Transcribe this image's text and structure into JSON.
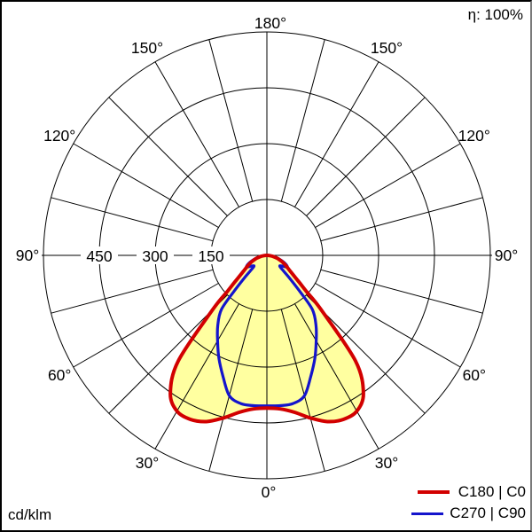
{
  "header": {
    "eta": "η: 100%"
  },
  "footer": {
    "unit": "cd/klm"
  },
  "legend": [
    {
      "label": "C180 | C0",
      "color": "#d20000"
    },
    {
      "label": "C270 | C90",
      "color": "#1414cc"
    }
  ],
  "chart_data": {
    "type": "polar-intensity",
    "title": "Luminous intensity distribution curve",
    "unit": "cd/klm",
    "eta_percent": 100,
    "gamma_zero": "bottom",
    "angle_labels_deg": [
      0,
      30,
      60,
      90,
      120,
      150,
      180
    ],
    "angle_label_suffix": "°",
    "radial_ticks": [
      150,
      300,
      450
    ],
    "radial_max": 600,
    "spoke_step_deg": 15,
    "grid_color": "#000000",
    "fill_color": "#ffffa0",
    "series": [
      {
        "name": "C180 | C0",
        "plane": "C0-C180",
        "color": "#d20000",
        "stroke_width": 4,
        "gamma_deg": [
          0,
          5,
          10,
          15,
          20,
          25,
          30,
          35,
          40,
          45,
          47.5,
          50,
          55,
          60,
          65,
          70,
          75,
          80,
          85,
          90
        ],
        "cd_per_klm": [
          410,
          414,
          428,
          452,
          475,
          486,
          483,
          452,
          370,
          205,
          145,
          115,
          80,
          62,
          50,
          38,
          27,
          17,
          8,
          2
        ]
      },
      {
        "name": "C270 | C90",
        "plane": "C90-C270",
        "color": "#1414cc",
        "stroke_width": 3.2,
        "gamma_deg": [
          0,
          5,
          10,
          15,
          20,
          25,
          30,
          35,
          40,
          42.5,
          45,
          47.5,
          50,
          55,
          60,
          65,
          70,
          75,
          80,
          85,
          90
        ],
        "cd_per_klm": [
          404,
          405,
          404,
          390,
          345,
          305,
          265,
          230,
          190,
          130,
          85,
          56,
          45,
          50,
          63,
          56,
          43,
          30,
          19,
          9,
          2
        ]
      }
    ]
  }
}
